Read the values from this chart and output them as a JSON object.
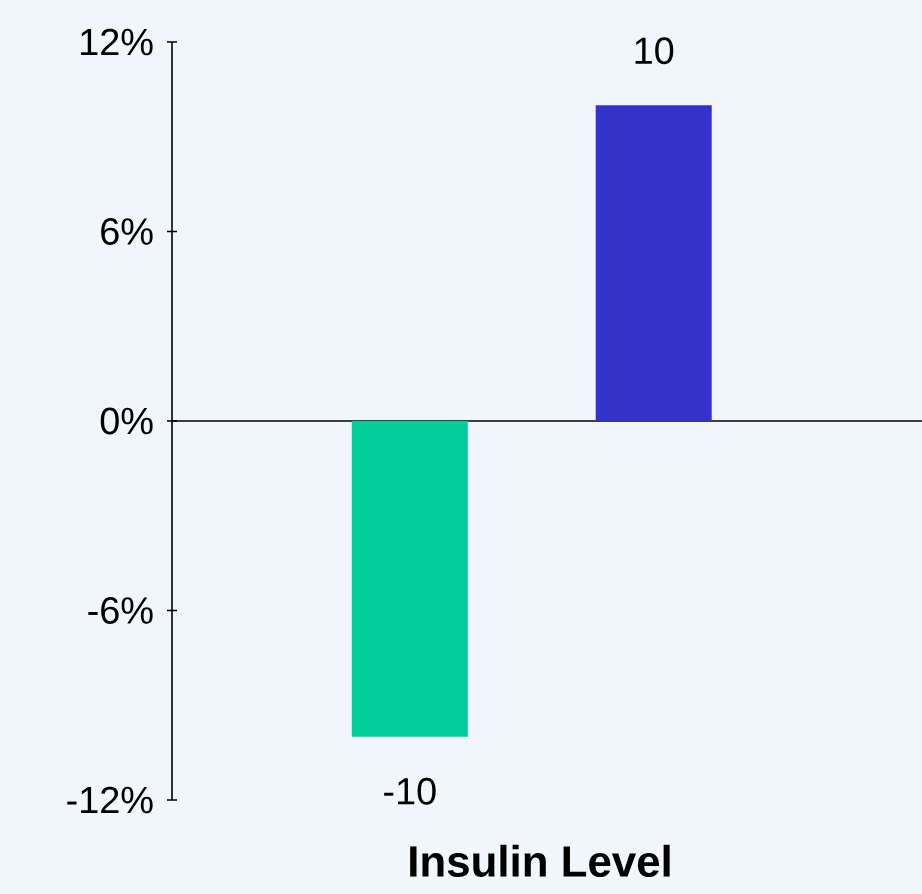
{
  "chart_data": {
    "type": "bar",
    "xlabel": "Insulin Level",
    "categories": [
      null,
      null
    ],
    "values": [
      -10,
      10
    ],
    "colors": [
      "#00cc99",
      "#3333cc"
    ],
    "ylim": [
      -12,
      12
    ],
    "yticks": [
      {
        "value": -12,
        "label": "-12%"
      },
      {
        "value": -6,
        "label": "-6%"
      },
      {
        "value": 0,
        "label": "0%"
      },
      {
        "value": 6,
        "label": "6%"
      },
      {
        "value": 12,
        "label": "12%"
      }
    ],
    "data_labels": true
  }
}
